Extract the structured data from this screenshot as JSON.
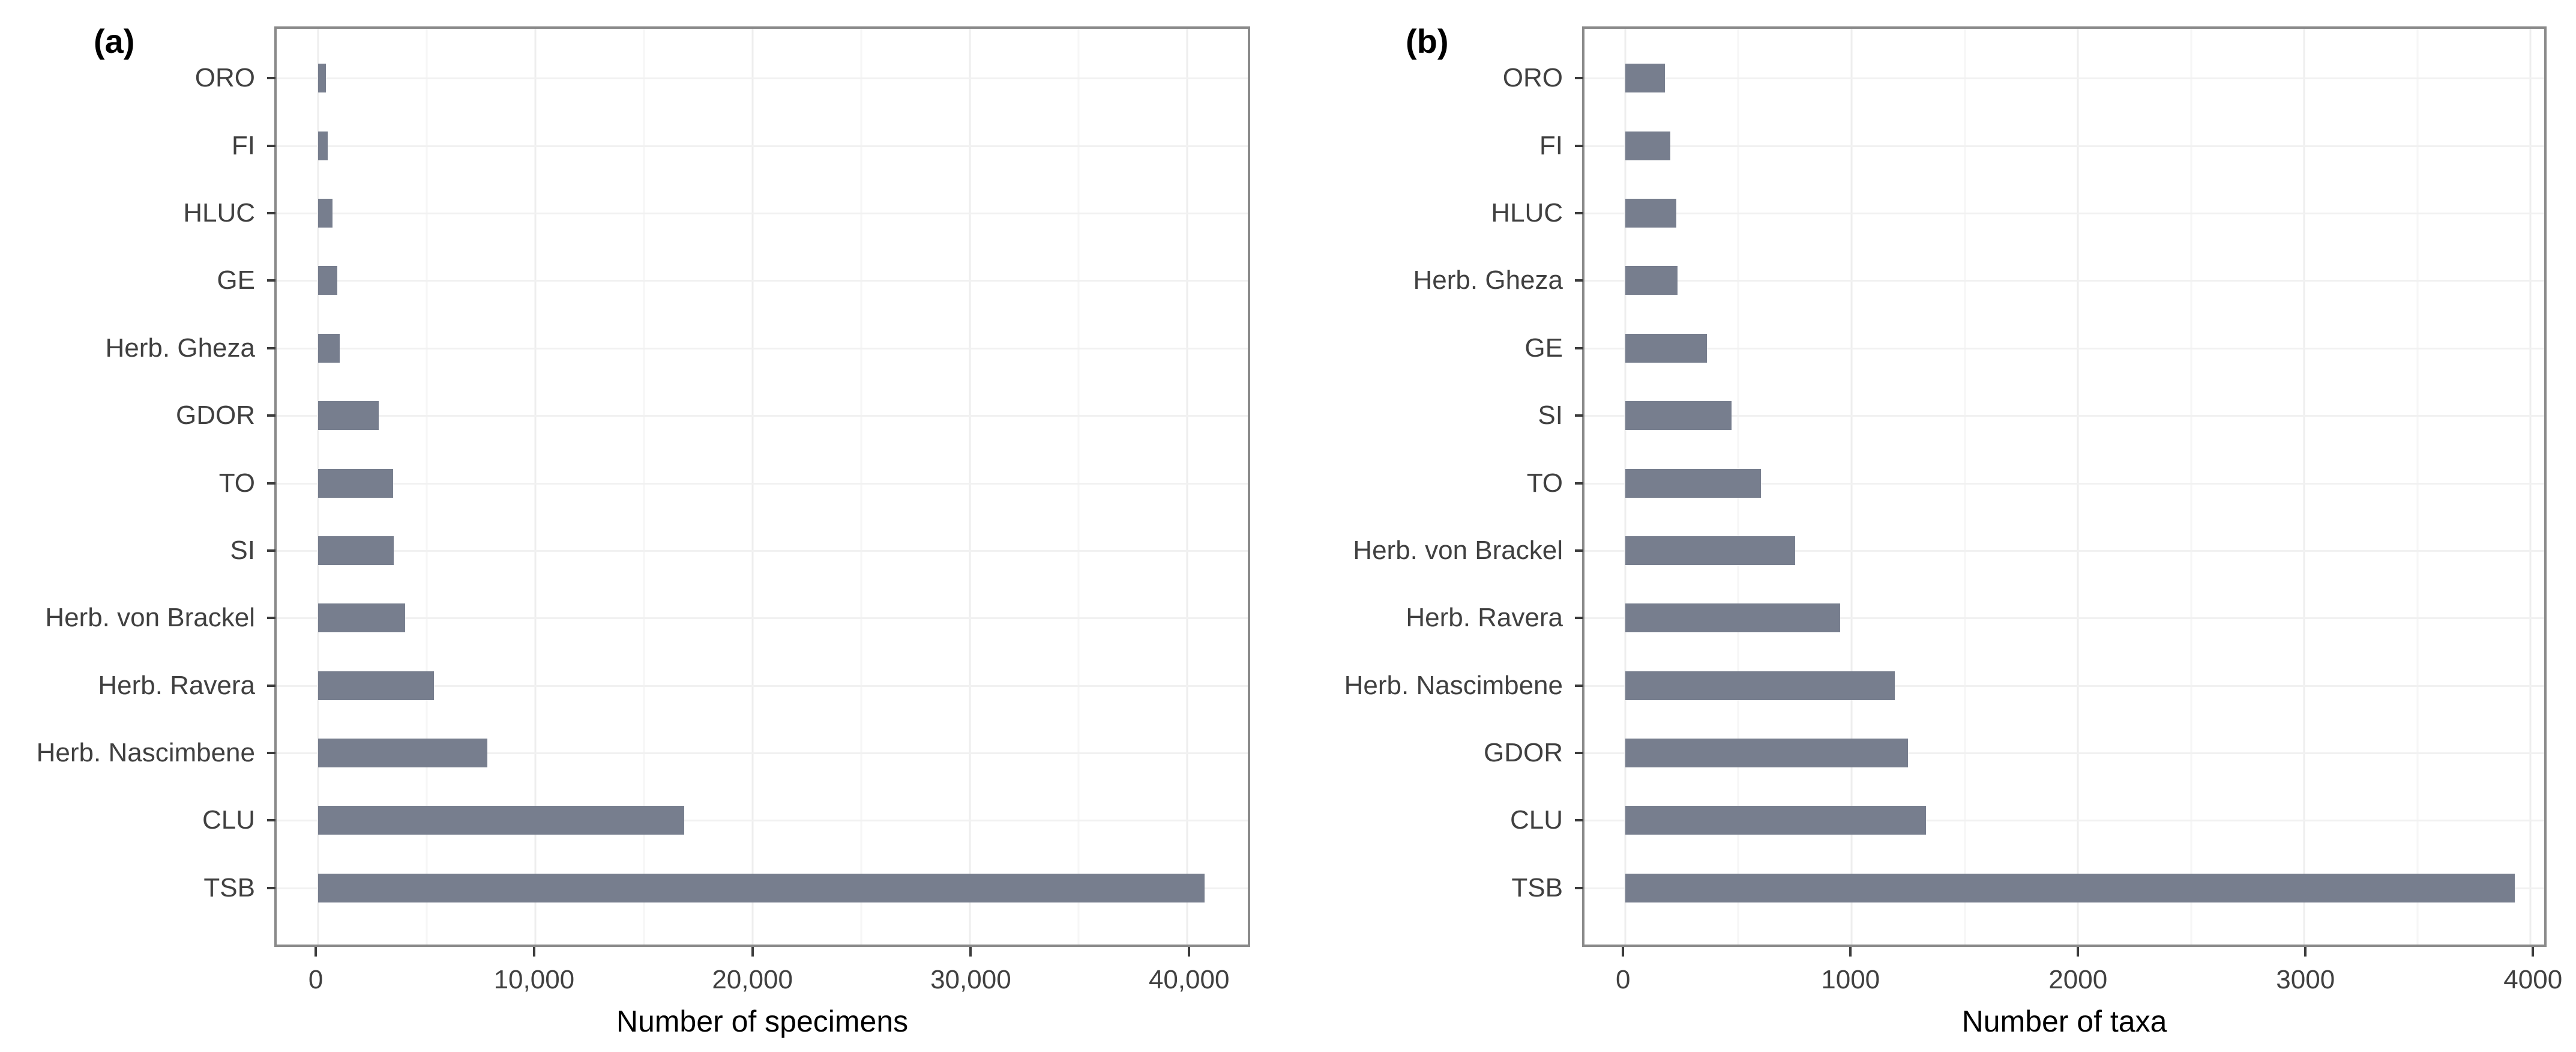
{
  "figure": {
    "background": "#ffffff",
    "bar_color": "#777e8e",
    "axis_text_color": "#404040",
    "panel_border_color": "#8a8a8a"
  },
  "chart_data": [
    {
      "type": "bar",
      "orientation": "horizontal",
      "panel_label": "(a)",
      "xlabel": "Number of specimens",
      "categories": [
        "ORO",
        "FI",
        "HLUC",
        "GE",
        "Herb. Gheza",
        "GDOR",
        "TO",
        "SI",
        "Herb. von Brackel",
        "Herb. Ravera",
        "Herb. Nascimbene",
        "CLU",
        "TSB"
      ],
      "values": [
        370,
        460,
        660,
        890,
        990,
        2790,
        3460,
        3490,
        4000,
        5350,
        7800,
        16870,
        40800
      ],
      "x_ticks": [
        0,
        10000,
        20000,
        30000,
        40000
      ],
      "x_tick_labels": [
        "0",
        "10,000",
        "20,000",
        "30,000",
        "40,000"
      ],
      "x_minor_ticks": [
        5000,
        15000,
        25000,
        35000
      ],
      "xlim": [
        -1900,
        42800
      ],
      "grid": true,
      "legend": false
    },
    {
      "type": "bar",
      "orientation": "horizontal",
      "panel_label": "(b)",
      "xlabel": "Number of taxa",
      "categories": [
        "ORO",
        "FI",
        "HLUC",
        "Herb. Gheza",
        "GE",
        "SI",
        "TO",
        "Herb. von Brackel",
        "Herb. Ravera",
        "Herb. Nascimbene",
        "GDOR",
        "CLU",
        "TSB"
      ],
      "values": [
        175,
        200,
        225,
        230,
        360,
        470,
        600,
        750,
        950,
        1190,
        1250,
        1330,
        3930
      ],
      "x_ticks": [
        0,
        1000,
        2000,
        3000,
        4000
      ],
      "x_tick_labels": [
        "0",
        "1000",
        "2000",
        "3000",
        "4000"
      ],
      "x_minor_ticks": [
        500,
        1500,
        2500,
        3500
      ],
      "xlim": [
        -180,
        4060
      ],
      "grid": true,
      "legend": false
    }
  ]
}
